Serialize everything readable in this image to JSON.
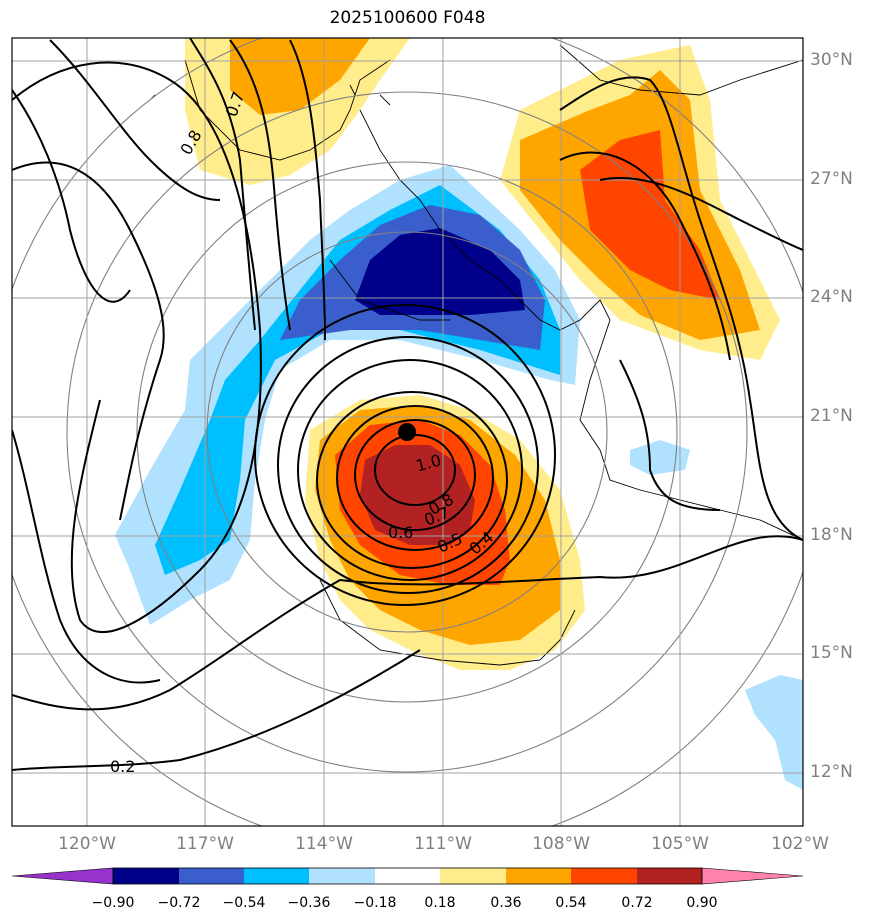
{
  "title": "2025100600 F048",
  "lat_labels": [
    "30°N",
    "27°N",
    "24°N",
    "21°N",
    "18°N",
    "15°N",
    "12°N"
  ],
  "lon_labels": [
    "120°W",
    "117°W",
    "114°W",
    "111°W",
    "108°W",
    "105°W",
    "102°W"
  ],
  "contour_labels": [
    "0.8",
    "0.7",
    "1.0",
    "0.8",
    "0.7",
    "0.6",
    "0.5",
    "0.4",
    "0.2"
  ],
  "colorbar": {
    "ticks": [
      "−0.90",
      "−0.72",
      "−0.54",
      "−0.36",
      "−0.18",
      "0.18",
      "0.36",
      "0.54",
      "0.72",
      "0.90"
    ],
    "colors": [
      "#9932cc",
      "#00008b",
      "#3a5fcd",
      "#00bfff",
      "#b0e2ff",
      "#ffffff",
      "#ffec8b",
      "#ffa500",
      "#ff4500",
      "#b22222",
      "#ff82ab"
    ]
  },
  "colors": {
    "dark_blue": "#00008b",
    "mid_blue": "#3a5fcd",
    "sky_blue": "#00bfff",
    "light_blue": "#b0e2ff",
    "light_yellow": "#ffec8b",
    "orange": "#ffa500",
    "red_orange": "#ff4500",
    "firebrick": "#b22222"
  },
  "storm_center": {
    "lon": -112.0,
    "lat": 20.6
  }
}
